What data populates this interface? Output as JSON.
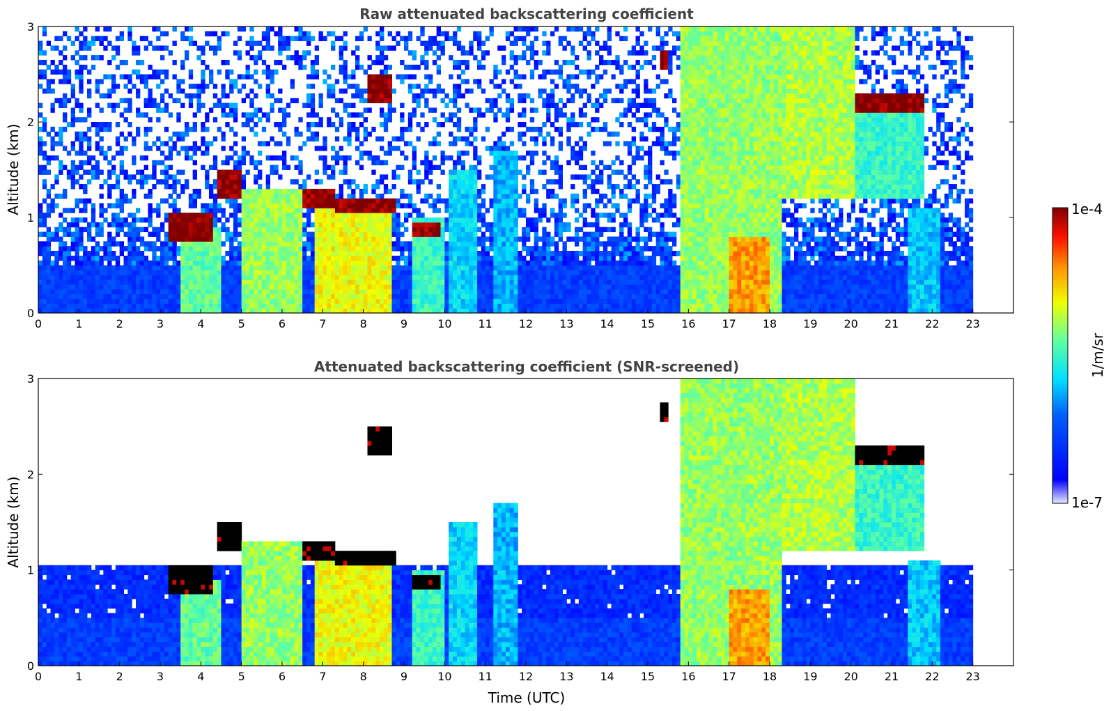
{
  "chart_data": [
    {
      "type": "heatmap",
      "title": "Raw attenuated backscattering coefficient",
      "xlabel": "",
      "ylabel": "Altitude (km)",
      "xlim": [
        0,
        24
      ],
      "ylim": [
        0,
        3
      ],
      "xticks": [
        "0",
        "1",
        "2",
        "3",
        "4",
        "5",
        "6",
        "7",
        "8",
        "9",
        "10",
        "11",
        "12",
        "13",
        "14",
        "15",
        "16",
        "17",
        "18",
        "19",
        "20",
        "21",
        "22",
        "23"
      ],
      "yticks": [
        "0",
        "1",
        "2",
        "3"
      ],
      "data_end_hour": 23,
      "layers": [
        {
          "name": "boundary layer",
          "x": [
            0,
            23
          ],
          "y": [
            0,
            0.5
          ],
          "intensity": 0.22
        },
        {
          "name": "cloud",
          "x": [
            3.2,
            4.3
          ],
          "y": [
            0.75,
            1.05
          ],
          "intensity": 1.0
        },
        {
          "name": "cloud",
          "x": [
            4.4,
            5.0
          ],
          "y": [
            1.2,
            1.5
          ],
          "intensity": 1.0
        },
        {
          "name": "cloud",
          "x": [
            6.5,
            7.3
          ],
          "y": [
            1.1,
            1.3
          ],
          "intensity": 1.0
        },
        {
          "name": "cloud",
          "x": [
            7.3,
            8.8
          ],
          "y": [
            1.05,
            1.2
          ],
          "intensity": 1.0
        },
        {
          "name": "cloud",
          "x": [
            8.1,
            8.7
          ],
          "y": [
            2.2,
            2.5
          ],
          "intensity": 1.0
        },
        {
          "name": "cloud",
          "x": [
            9.2,
            9.9
          ],
          "y": [
            0.8,
            0.95
          ],
          "intensity": 1.0
        },
        {
          "name": "cloud",
          "x": [
            15.3,
            15.5
          ],
          "y": [
            2.55,
            2.75
          ],
          "intensity": 1.0
        },
        {
          "name": "cloud",
          "x": [
            20.1,
            21.8
          ],
          "y": [
            2.1,
            2.3
          ],
          "intensity": 1.0
        },
        {
          "name": "precipitation",
          "x": [
            3.5,
            4.5
          ],
          "y": [
            0,
            0.9
          ],
          "intensity": 0.55
        },
        {
          "name": "precipitation",
          "x": [
            5.0,
            6.5
          ],
          "y": [
            0,
            1.3
          ],
          "intensity": 0.6
        },
        {
          "name": "precipitation",
          "x": [
            6.8,
            8.7
          ],
          "y": [
            0,
            1.1
          ],
          "intensity": 0.68
        },
        {
          "name": "precipitation",
          "x": [
            9.2,
            10.0
          ],
          "y": [
            0,
            1.0
          ],
          "intensity": 0.5
        },
        {
          "name": "precipitation",
          "x": [
            10.1,
            10.8
          ],
          "y": [
            0,
            1.5
          ],
          "intensity": 0.42
        },
        {
          "name": "precipitation",
          "x": [
            11.2,
            11.8
          ],
          "y": [
            0,
            1.7
          ],
          "intensity": 0.38
        },
        {
          "name": "precipitation",
          "x": [
            15.8,
            18.3
          ],
          "y": [
            0,
            3.0
          ],
          "intensity": 0.6
        },
        {
          "name": "precipitation",
          "x": [
            17.0,
            18.0
          ],
          "y": [
            0,
            0.8
          ],
          "intensity": 0.78
        },
        {
          "name": "precipitation",
          "x": [
            18.3,
            20.1
          ],
          "y": [
            1.2,
            3.0
          ],
          "intensity": 0.62
        },
        {
          "name": "precipitation",
          "x": [
            20.0,
            21.8
          ],
          "y": [
            1.2,
            2.2
          ],
          "intensity": 0.5
        },
        {
          "name": "precipitation",
          "x": [
            21.4,
            22.2
          ],
          "y": [
            0,
            1.1
          ],
          "intensity": 0.4
        }
      ]
    },
    {
      "type": "heatmap",
      "title": "Attenuated backscattering coefficient (SNR-screened)",
      "xlabel": "Time (UTC)",
      "ylabel": "Altitude (km)",
      "xlim": [
        0,
        24
      ],
      "ylim": [
        0,
        3
      ],
      "xticks": [
        "0",
        "1",
        "2",
        "3",
        "4",
        "5",
        "6",
        "7",
        "8",
        "9",
        "10",
        "11",
        "12",
        "13",
        "14",
        "15",
        "16",
        "17",
        "18",
        "19",
        "20",
        "21",
        "22",
        "23"
      ],
      "yticks": [
        "0",
        "1",
        "2",
        "3"
      ],
      "data_end_hour": 23,
      "screened": true
    }
  ],
  "colorbar": {
    "label": "1/m/sr",
    "max_label": "1e-4",
    "min_label": "1e-7",
    "colormap": "jet"
  }
}
